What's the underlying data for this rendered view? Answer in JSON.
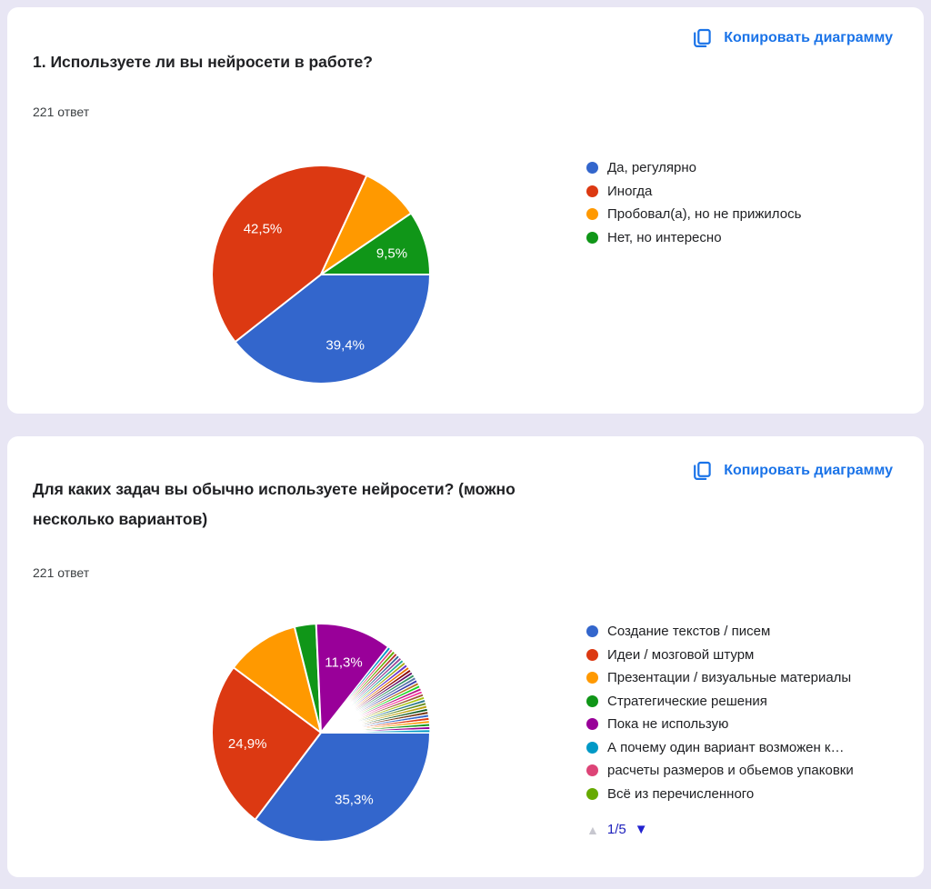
{
  "page": {
    "background": "#E8E6F4",
    "card_background": "#FFFFFF",
    "accent_blue": "#1A73E8",
    "text_primary": "#202124",
    "text_secondary": "#3C4043"
  },
  "cards": [
    {
      "copy_button_label": "Копировать диаграмму",
      "title": "1. Используете ли вы нейросети в работе?",
      "responses_label": "221 ответ"
    },
    {
      "copy_button_label": "Копировать диаграмму",
      "title": "Для каких задач вы обычно используете нейросети? (можно\nнесколько вариантов)",
      "responses_label": "221 ответ",
      "legend_pagination": {
        "up_icon": "▲",
        "page_label": "1/5",
        "down_icon": "▼"
      }
    }
  ],
  "chart_data": [
    {
      "type": "pie",
      "title": "1. Используете ли вы нейросети в работе?",
      "responses_total": 221,
      "start_angle": "east-clockwise",
      "legend_position": "right",
      "legend_visible_count": 4,
      "series": [
        {
          "label": "Да, регулярно",
          "value": 39.4,
          "display": "39,4%",
          "color": "#3366CC",
          "label_visible": true
        },
        {
          "label": "Иногда",
          "value": 42.5,
          "display": "42,5%",
          "color": "#DC3912",
          "label_visible": true
        },
        {
          "label": "Пробовал(а), но не прижилось",
          "value": 8.6,
          "display": "",
          "color": "#FF9900",
          "label_visible": false
        },
        {
          "label": "Нет, но интересно",
          "value": 9.5,
          "display": "9,5%",
          "color": "#109618",
          "label_visible": true
        }
      ]
    },
    {
      "type": "pie",
      "title": "Для каких задач вы обычно используете нейросети? (можно несколько вариантов)",
      "responses_total": 221,
      "start_angle": "east-clockwise",
      "legend_position": "right",
      "legend_visible_count": 8,
      "series": [
        {
          "label": "Создание текстов / писем",
          "value": 35.3,
          "display": "35,3%",
          "color": "#3366CC",
          "label_visible": true
        },
        {
          "label": "Идеи / мозговой штурм",
          "value": 24.9,
          "display": "24,9%",
          "color": "#DC3912",
          "label_visible": true
        },
        {
          "label": "Презентации / визуальные материалы",
          "value": 10.9,
          "display": "",
          "color": "#FF9900",
          "label_visible": false
        },
        {
          "label": "Стратегические решения",
          "value": 3.2,
          "display": "",
          "color": "#109618",
          "label_visible": false
        },
        {
          "label": "Пока не использую",
          "value": 11.3,
          "display": "11,3%",
          "color": "#990099",
          "label_visible": true
        },
        {
          "label": "А почему один вариант возможен к…",
          "value": 0.45,
          "display": "",
          "color": "#0099C6",
          "label_visible": false
        },
        {
          "label": "расчеты размеров и обьемов упаковки",
          "value": 0.45,
          "display": "",
          "color": "#DD4477",
          "label_visible": false
        },
        {
          "label": "Всё из перечисленного",
          "value": 0.45,
          "display": "",
          "color": "#66AA00",
          "label_visible": false
        }
      ],
      "micro_slices": {
        "count": 29,
        "percent_each": 0.45
      }
    }
  ],
  "micro_palette": [
    "#B82E2E",
    "#316395",
    "#994499",
    "#22AA99",
    "#AAAA11",
    "#6633CC",
    "#E67300",
    "#8B0707",
    "#651067",
    "#329262",
    "#5574A6",
    "#3B3EAC",
    "#B77322",
    "#16D620",
    "#B91383",
    "#F4359E",
    "#9C5935",
    "#A9C413",
    "#2A778D",
    "#668D1C",
    "#BEA413",
    "#0C5922",
    "#743411",
    "#3366CC",
    "#DC3912",
    "#FF9900",
    "#109618",
    "#990099",
    "#0099C6"
  ]
}
